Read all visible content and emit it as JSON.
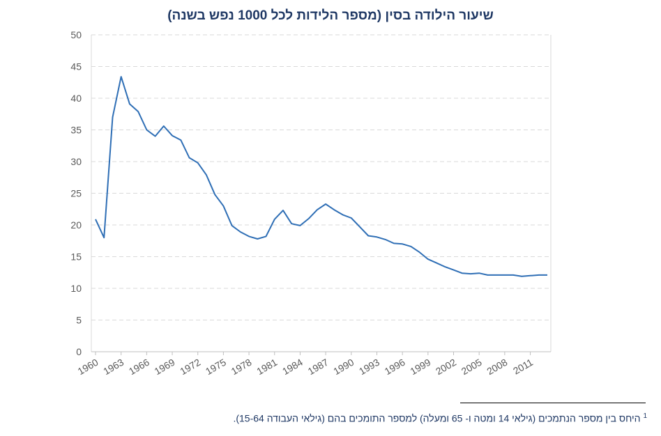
{
  "chart_data": {
    "type": "line",
    "title": "שיעור הילודה בסין (מספר הלידות לכל 1000 נפש בשנה)",
    "xlabel": "",
    "ylabel": "",
    "ylim": [
      0,
      50
    ],
    "y_ticks": [
      0,
      5,
      10,
      15,
      20,
      25,
      30,
      35,
      40,
      45,
      50
    ],
    "x_ticks": [
      "1960",
      "1963",
      "1966",
      "1969",
      "1972",
      "1975",
      "1978",
      "1981",
      "1984",
      "1987",
      "1990",
      "1993",
      "1996",
      "1999",
      "2002",
      "2005",
      "2008",
      "2011"
    ],
    "grid": "horizontal dashed",
    "legend": "none",
    "line_color": "#2e6eb5",
    "x": [
      1960,
      1961,
      1962,
      1963,
      1964,
      1965,
      1966,
      1967,
      1968,
      1969,
      1970,
      1971,
      1972,
      1973,
      1974,
      1975,
      1976,
      1977,
      1978,
      1979,
      1980,
      1981,
      1982,
      1983,
      1984,
      1985,
      1986,
      1987,
      1988,
      1989,
      1990,
      1991,
      1992,
      1993,
      1994,
      1995,
      1996,
      1997,
      1998,
      1999,
      2000,
      2001,
      2002,
      2003,
      2004,
      2005,
      2006,
      2007,
      2008,
      2009,
      2010,
      2011,
      2012,
      2013
    ],
    "series": [
      {
        "values": [
          20.9,
          18.0,
          37.0,
          43.4,
          39.1,
          37.9,
          35.0,
          34.0,
          35.6,
          34.1,
          33.4,
          30.6,
          29.8,
          27.9,
          24.8,
          23.0,
          19.9,
          18.9,
          18.2,
          17.8,
          18.2,
          20.9,
          22.3,
          20.2,
          19.9,
          21.0,
          22.4,
          23.3,
          22.4,
          21.6,
          21.1,
          19.7,
          18.3,
          18.1,
          17.7,
          17.1,
          17.0,
          16.6,
          15.7,
          14.6,
          14.0,
          13.4,
          12.9,
          12.4,
          12.3,
          12.4,
          12.1,
          12.1,
          12.1,
          12.1,
          11.9,
          12.0,
          12.1,
          12.1
        ]
      }
    ]
  },
  "footnote": {
    "marker": "1",
    "text": "היחס בין מספר הנתמכים (גילאי 14 ומטה ו- 65 ומעלה) למספר התומכים בהם (גילאי העבודה 15-64)."
  }
}
